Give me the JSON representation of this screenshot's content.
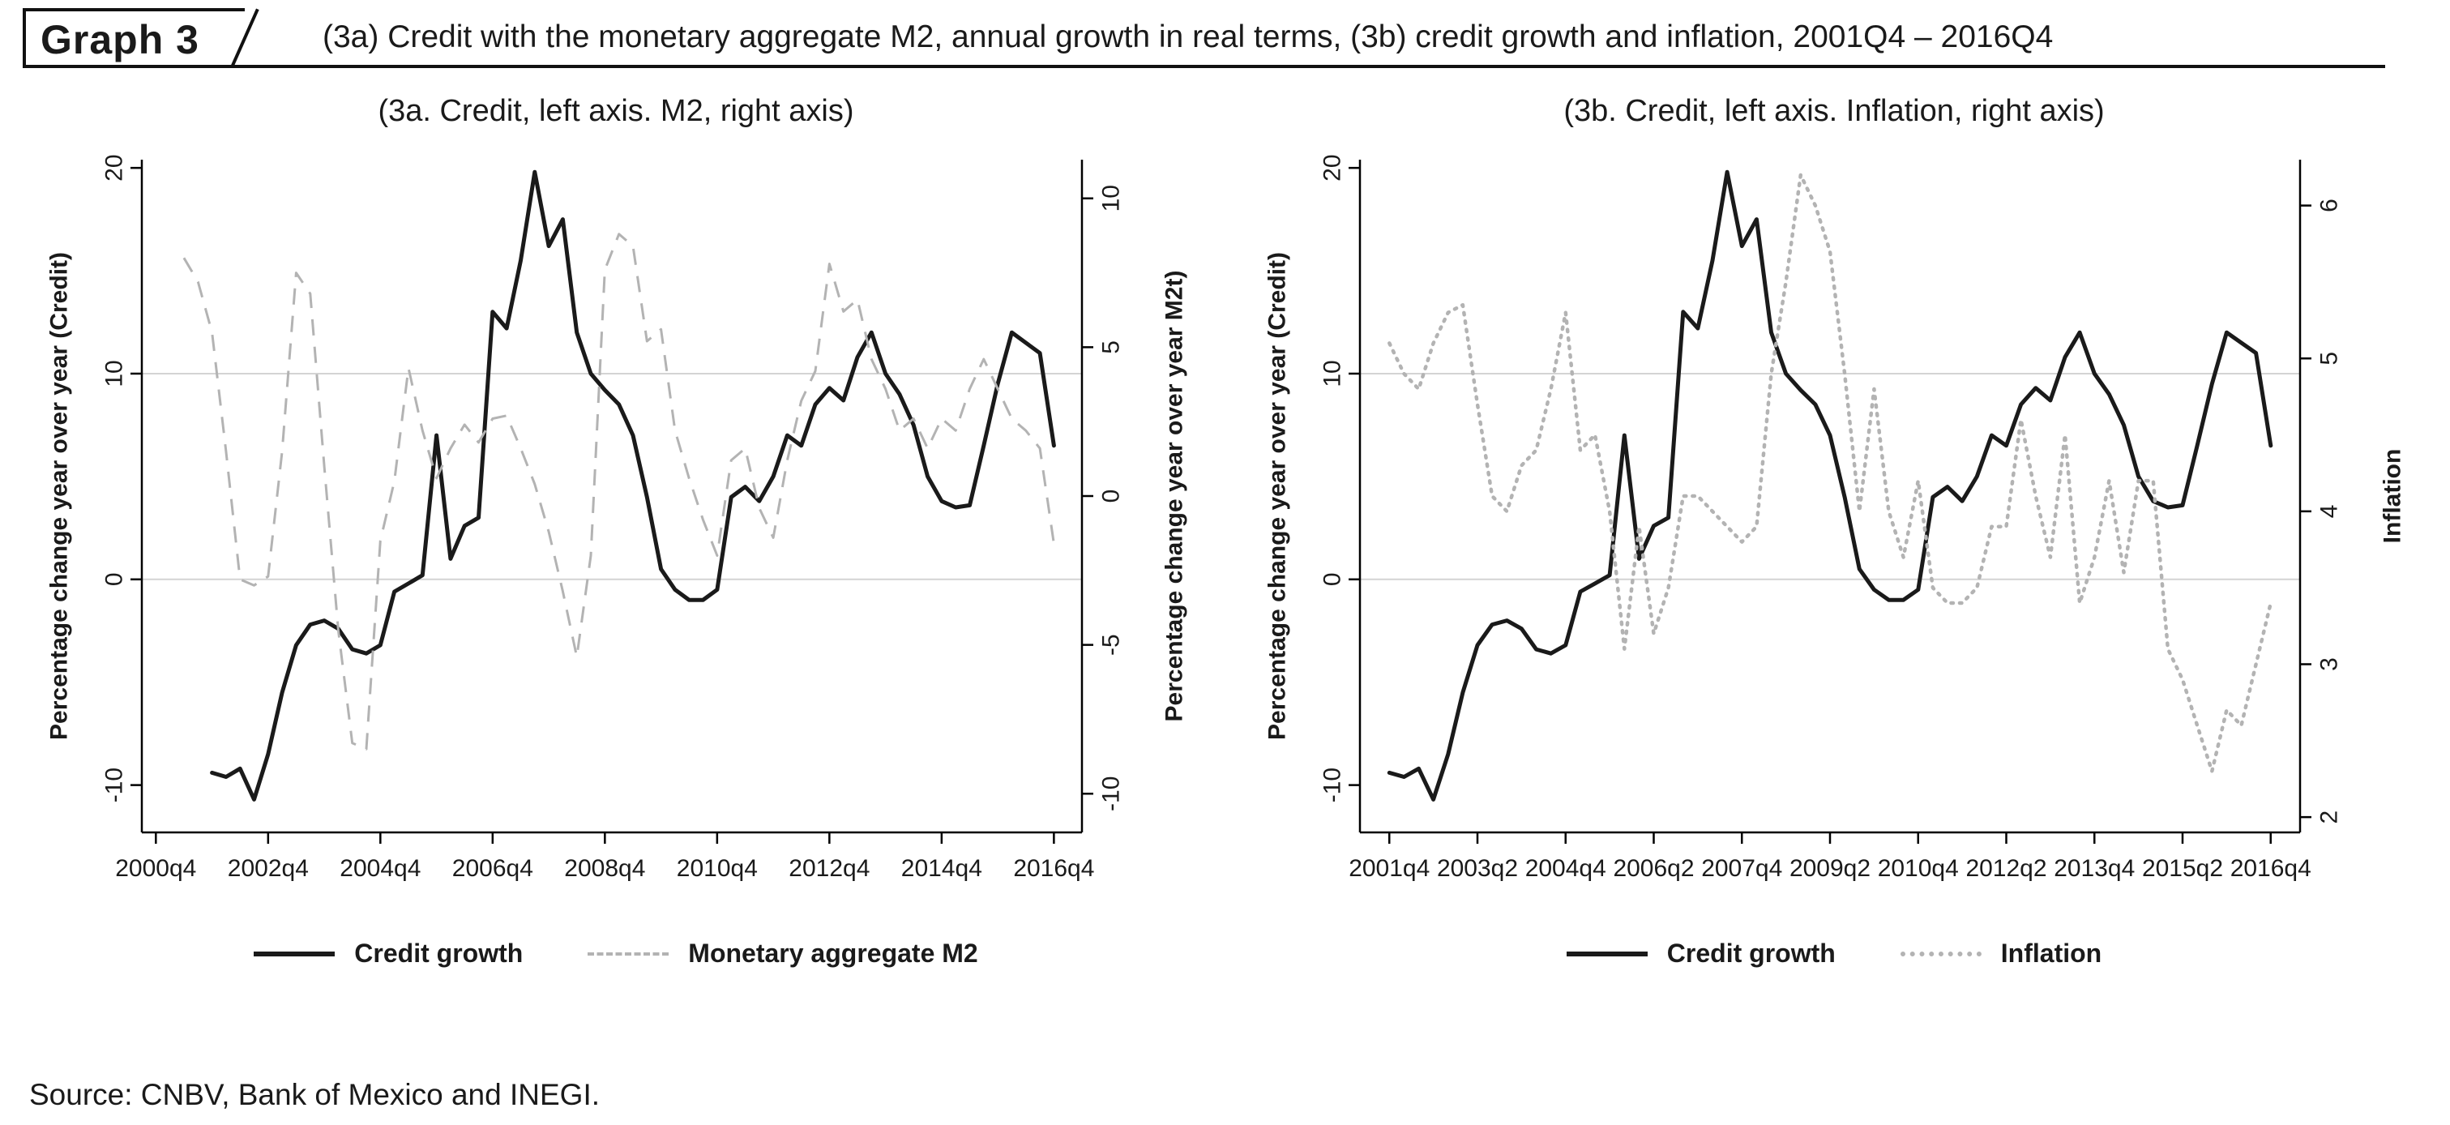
{
  "header": {
    "tag": "Graph 3",
    "title": "(3a) Credit with the monetary aggregate M2, annual growth in real terms, (3b) credit growth and inflation, 2001Q4 – 2016Q4"
  },
  "source_note": "Source: CNBV, Bank of Mexico and INEGI.",
  "colors": {
    "credit_line": "#1a1a1a",
    "secondary_line": "#b3b3b3",
    "grid_line": "#d4d4d4",
    "axis_line": "#000000",
    "text": "#1a1a1a"
  },
  "chart_data": [
    {
      "type": "line",
      "title": "(3a. Credit, left axis. M2, right axis)",
      "xlim": [
        "2000q3",
        "2017q2"
      ],
      "x_ticks": [
        "2000q4",
        "2002q4",
        "2004q4",
        "2006q4",
        "2008q4",
        "2010q4",
        "2012q4",
        "2014q4",
        "2016q4"
      ],
      "left_axis": {
        "label": "Percentage change year over year (Credit)",
        "ticks": [
          -10,
          0,
          10,
          20
        ],
        "lim": [
          -12.3,
          20.4
        ],
        "grid": [
          0,
          10
        ]
      },
      "right_axis": {
        "label": "Percentage change year over year M2t)",
        "ticks": [
          -10,
          -5,
          0,
          5,
          10
        ],
        "lim": [
          -11.3,
          11.3
        ]
      },
      "legend_position": "bottom",
      "series": [
        {
          "name": "Credit growth",
          "axis": "left",
          "style": "solid",
          "x": [
            "2001q4",
            "2002q1",
            "2002q2",
            "2002q3",
            "2002q4",
            "2003q1",
            "2003q2",
            "2003q3",
            "2003q4",
            "2004q1",
            "2004q2",
            "2004q3",
            "2004q4",
            "2005q1",
            "2005q2",
            "2005q3",
            "2005q4",
            "2006q1",
            "2006q2",
            "2006q3",
            "2006q4",
            "2007q1",
            "2007q2",
            "2007q3",
            "2007q4",
            "2008q1",
            "2008q2",
            "2008q3",
            "2008q4",
            "2009q1",
            "2009q2",
            "2009q3",
            "2009q4",
            "2010q1",
            "2010q2",
            "2010q3",
            "2010q4",
            "2011q1",
            "2011q2",
            "2011q3",
            "2011q4",
            "2012q1",
            "2012q2",
            "2012q3",
            "2012q4",
            "2013q1",
            "2013q2",
            "2013q3",
            "2013q4",
            "2014q1",
            "2014q2",
            "2014q3",
            "2014q4",
            "2015q1",
            "2015q2",
            "2015q3",
            "2015q4",
            "2016q1",
            "2016q2",
            "2016q3",
            "2016q4"
          ],
          "values": [
            -9.4,
            -9.6,
            -9.2,
            -10.7,
            -8.5,
            -5.5,
            -3.2,
            -2.2,
            -2.0,
            -2.4,
            -3.4,
            -3.6,
            -3.2,
            -0.6,
            -0.2,
            0.2,
            7.0,
            1.0,
            2.6,
            3.0,
            13.0,
            12.2,
            15.5,
            19.8,
            16.2,
            17.5,
            12.0,
            10.0,
            9.2,
            8.5,
            7.0,
            4.0,
            0.5,
            -0.5,
            -1.0,
            -1.0,
            -0.5,
            4.0,
            4.5,
            3.8,
            5.0,
            7.0,
            6.5,
            8.5,
            9.3,
            8.7,
            10.8,
            12.0,
            10.0,
            9.0,
            7.5,
            5.0,
            3.8,
            3.5,
            3.6,
            6.5,
            9.5,
            12.0,
            11.5,
            11.0,
            6.5
          ]
        },
        {
          "name": "Monetary aggregate M2",
          "axis": "right",
          "style": "dashed",
          "x": [
            "2001q2",
            "2001q3",
            "2001q4",
            "2002q1",
            "2002q2",
            "2002q3",
            "2002q4",
            "2003q1",
            "2003q2",
            "2003q3",
            "2003q4",
            "2004q1",
            "2004q2",
            "2004q3",
            "2004q4",
            "2005q1",
            "2005q2",
            "2005q3",
            "2005q4",
            "2006q1",
            "2006q2",
            "2006q3",
            "2006q4",
            "2007q1",
            "2007q2",
            "2007q3",
            "2007q4",
            "2008q1",
            "2008q2",
            "2008q3",
            "2008q4",
            "2009q1",
            "2009q2",
            "2009q3",
            "2009q4",
            "2010q1",
            "2010q2",
            "2010q3",
            "2010q4",
            "2011q1",
            "2011q2",
            "2011q3",
            "2011q4",
            "2012q1",
            "2012q2",
            "2012q3",
            "2012q4",
            "2013q1",
            "2013q2",
            "2013q3",
            "2013q4",
            "2014q1",
            "2014q2",
            "2014q3",
            "2014q4",
            "2015q1",
            "2015q2",
            "2015q3",
            "2015q4",
            "2016q1",
            "2016q2",
            "2016q3",
            "2016q4"
          ],
          "values": [
            8.0,
            7.2,
            5.5,
            1.5,
            -2.8,
            -3.0,
            -2.7,
            1.5,
            7.5,
            6.8,
            1.0,
            -4.5,
            -8.3,
            -8.5,
            -1.5,
            0.5,
            4.3,
            2.2,
            0.6,
            1.6,
            2.4,
            1.8,
            2.6,
            2.7,
            1.6,
            0.4,
            -1.2,
            -3.2,
            -5.4,
            -2.0,
            7.6,
            8.8,
            8.4,
            5.2,
            5.6,
            2.2,
            0.6,
            -0.8,
            -2.0,
            1.2,
            1.6,
            -0.4,
            -1.4,
            1.2,
            3.2,
            4.2,
            7.8,
            6.2,
            6.6,
            4.6,
            3.6,
            2.2,
            2.6,
            1.6,
            2.6,
            2.2,
            3.6,
            4.6,
            3.6,
            2.6,
            2.2,
            1.6,
            -1.6
          ]
        }
      ]
    },
    {
      "type": "line",
      "title": "(3b. Credit, left axis. Inflation, right axis)",
      "xlim": [
        "2001q2",
        "2017q2"
      ],
      "x_ticks": [
        "2001q4",
        "2003q2",
        "2004q4",
        "2006q2",
        "2007q4",
        "2009q2",
        "2010q4",
        "2012q2",
        "2013q4",
        "2015q2",
        "2016q4"
      ],
      "left_axis": {
        "label": "Percentage change year over year (Credit)",
        "ticks": [
          -10,
          0,
          10,
          20
        ],
        "lim": [
          -12.3,
          20.4
        ],
        "grid": [
          0,
          10
        ]
      },
      "right_axis": {
        "label": "Inflation",
        "ticks": [
          2,
          3,
          4,
          5,
          6
        ],
        "lim": [
          1.9,
          6.3
        ]
      },
      "legend_position": "bottom",
      "series": [
        {
          "name": "Credit growth",
          "axis": "left",
          "style": "solid",
          "x": [
            "2001q4",
            "2002q1",
            "2002q2",
            "2002q3",
            "2002q4",
            "2003q1",
            "2003q2",
            "2003q3",
            "2003q4",
            "2004q1",
            "2004q2",
            "2004q3",
            "2004q4",
            "2005q1",
            "2005q2",
            "2005q3",
            "2005q4",
            "2006q1",
            "2006q2",
            "2006q3",
            "2006q4",
            "2007q1",
            "2007q2",
            "2007q3",
            "2007q4",
            "2008q1",
            "2008q2",
            "2008q3",
            "2008q4",
            "2009q1",
            "2009q2",
            "2009q3",
            "2009q4",
            "2010q1",
            "2010q2",
            "2010q3",
            "2010q4",
            "2011q1",
            "2011q2",
            "2011q3",
            "2011q4",
            "2012q1",
            "2012q2",
            "2012q3",
            "2012q4",
            "2013q1",
            "2013q2",
            "2013q3",
            "2013q4",
            "2014q1",
            "2014q2",
            "2014q3",
            "2014q4",
            "2015q1",
            "2015q2",
            "2015q3",
            "2015q4",
            "2016q1",
            "2016q2",
            "2016q3",
            "2016q4"
          ],
          "values": [
            -9.4,
            -9.6,
            -9.2,
            -10.7,
            -8.5,
            -5.5,
            -3.2,
            -2.2,
            -2.0,
            -2.4,
            -3.4,
            -3.6,
            -3.2,
            -0.6,
            -0.2,
            0.2,
            7.0,
            1.0,
            2.6,
            3.0,
            13.0,
            12.2,
            15.5,
            19.8,
            16.2,
            17.5,
            12.0,
            10.0,
            9.2,
            8.5,
            7.0,
            4.0,
            0.5,
            -0.5,
            -1.0,
            -1.0,
            -0.5,
            4.0,
            4.5,
            3.8,
            5.0,
            7.0,
            6.5,
            8.5,
            9.3,
            8.7,
            10.8,
            12.0,
            10.0,
            9.0,
            7.5,
            5.0,
            3.8,
            3.5,
            3.6,
            6.5,
            9.5,
            12.0,
            11.5,
            11.0,
            6.5
          ]
        },
        {
          "name": "Inflation",
          "axis": "right",
          "style": "dotted",
          "x": [
            "2001q4",
            "2002q1",
            "2002q2",
            "2002q3",
            "2002q4",
            "2003q1",
            "2003q2",
            "2003q3",
            "2003q4",
            "2004q1",
            "2004q2",
            "2004q3",
            "2004q4",
            "2005q1",
            "2005q2",
            "2005q3",
            "2005q4",
            "2006q1",
            "2006q2",
            "2006q3",
            "2006q4",
            "2007q1",
            "2007q2",
            "2007q3",
            "2007q4",
            "2008q1",
            "2008q2",
            "2008q3",
            "2008q4",
            "2009q1",
            "2009q2",
            "2009q3",
            "2009q4",
            "2010q1",
            "2010q2",
            "2010q3",
            "2010q4",
            "2011q1",
            "2011q2",
            "2011q3",
            "2011q4",
            "2012q1",
            "2012q2",
            "2012q3",
            "2012q4",
            "2013q1",
            "2013q2",
            "2013q3",
            "2013q4",
            "2014q1",
            "2014q2",
            "2014q3",
            "2014q4",
            "2015q1",
            "2015q2",
            "2015q3",
            "2015q4",
            "2016q1",
            "2016q2",
            "2016q3",
            "2016q4"
          ],
          "values": [
            5.1,
            4.9,
            4.8,
            5.1,
            5.3,
            5.35,
            4.7,
            4.1,
            4.0,
            4.3,
            4.4,
            4.8,
            5.3,
            4.4,
            4.5,
            4.0,
            3.1,
            3.9,
            3.2,
            3.5,
            4.1,
            4.1,
            4.0,
            3.9,
            3.8,
            3.9,
            4.9,
            5.5,
            6.2,
            6.0,
            5.7,
            4.9,
            4.0,
            4.8,
            4.0,
            3.7,
            4.2,
            3.5,
            3.4,
            3.4,
            3.5,
            3.9,
            3.9,
            4.6,
            4.1,
            3.7,
            4.5,
            3.4,
            3.7,
            4.2,
            3.6,
            4.2,
            4.2,
            3.1,
            2.9,
            2.6,
            2.3,
            2.7,
            2.6,
            3.0,
            3.4
          ]
        }
      ]
    }
  ]
}
